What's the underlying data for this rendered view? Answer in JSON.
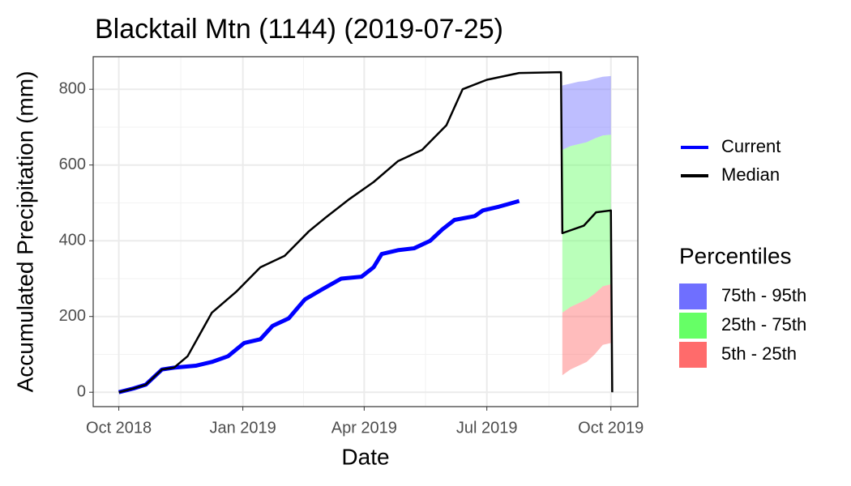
{
  "chart_data": {
    "type": "line",
    "title": "Blacktail Mtn (1144) (2019-07-25)",
    "xlabel": "Date",
    "ylabel": "Accumulated Precipitation (mm)",
    "xlim": [
      -19,
      385
    ],
    "xticks": [
      {
        "value": 0,
        "label": "Oct 2018"
      },
      {
        "value": 92,
        "label": "Jan 2019"
      },
      {
        "value": 182,
        "label": "Apr 2019"
      },
      {
        "value": 273,
        "label": "Jul 2019"
      },
      {
        "value": 365,
        "label": "Oct 2019"
      }
    ],
    "ylim": [
      -38,
      886
    ],
    "yticks": [
      0,
      200,
      400,
      600,
      800
    ],
    "grid": true,
    "series": [
      {
        "name": "Current",
        "color": "#0000ff",
        "x": [
          0,
          11,
          20,
          32,
          41,
          57,
          69,
          81,
          93,
          105,
          114,
          126,
          138,
          150,
          165,
          180,
          189,
          195,
          207,
          219,
          231,
          240,
          249,
          264,
          270,
          282,
          297
        ],
        "values": [
          0,
          10,
          20,
          60,
          65,
          70,
          80,
          95,
          130,
          140,
          175,
          195,
          245,
          270,
          300,
          305,
          330,
          365,
          375,
          380,
          400,
          430,
          455,
          465,
          480,
          490,
          505
        ]
      },
      {
        "name": "Median",
        "color": "#000000",
        "x": [
          0,
          11,
          20,
          32,
          41,
          51,
          69,
          87,
          105,
          123,
          141,
          153,
          171,
          189,
          207,
          225,
          243,
          255,
          273,
          297,
          328,
          329,
          345,
          354,
          365,
          366
        ],
        "values": [
          0,
          10,
          20,
          60,
          65,
          95,
          210,
          265,
          330,
          360,
          425,
          460,
          510,
          555,
          610,
          640,
          705,
          800,
          825,
          843,
          845,
          420,
          440,
          475,
          480,
          0
        ]
      }
    ],
    "bands_title": "Percentiles",
    "band_opacity": 0.45,
    "bands": [
      {
        "name": "75th - 95th",
        "color": "#6f6fff",
        "x": [
          329,
          335,
          341,
          347,
          353,
          359,
          365
        ],
        "lower": [
          640,
          650,
          655,
          660,
          670,
          678,
          680
        ],
        "upper": [
          810,
          815,
          820,
          822,
          828,
          833,
          835
        ]
      },
      {
        "name": "25th - 75th",
        "color": "#66ff66",
        "x": [
          329,
          335,
          341,
          347,
          353,
          359,
          365
        ],
        "lower": [
          210,
          225,
          235,
          245,
          260,
          280,
          285
        ],
        "upper": [
          640,
          650,
          655,
          660,
          670,
          678,
          680
        ]
      },
      {
        "name": "5th - 25th",
        "color": "#ff6b6b",
        "x": [
          329,
          335,
          341,
          347,
          353,
          359,
          365
        ],
        "lower": [
          45,
          60,
          70,
          80,
          100,
          125,
          130
        ],
        "upper": [
          210,
          225,
          235,
          245,
          260,
          280,
          285
        ]
      }
    ]
  }
}
